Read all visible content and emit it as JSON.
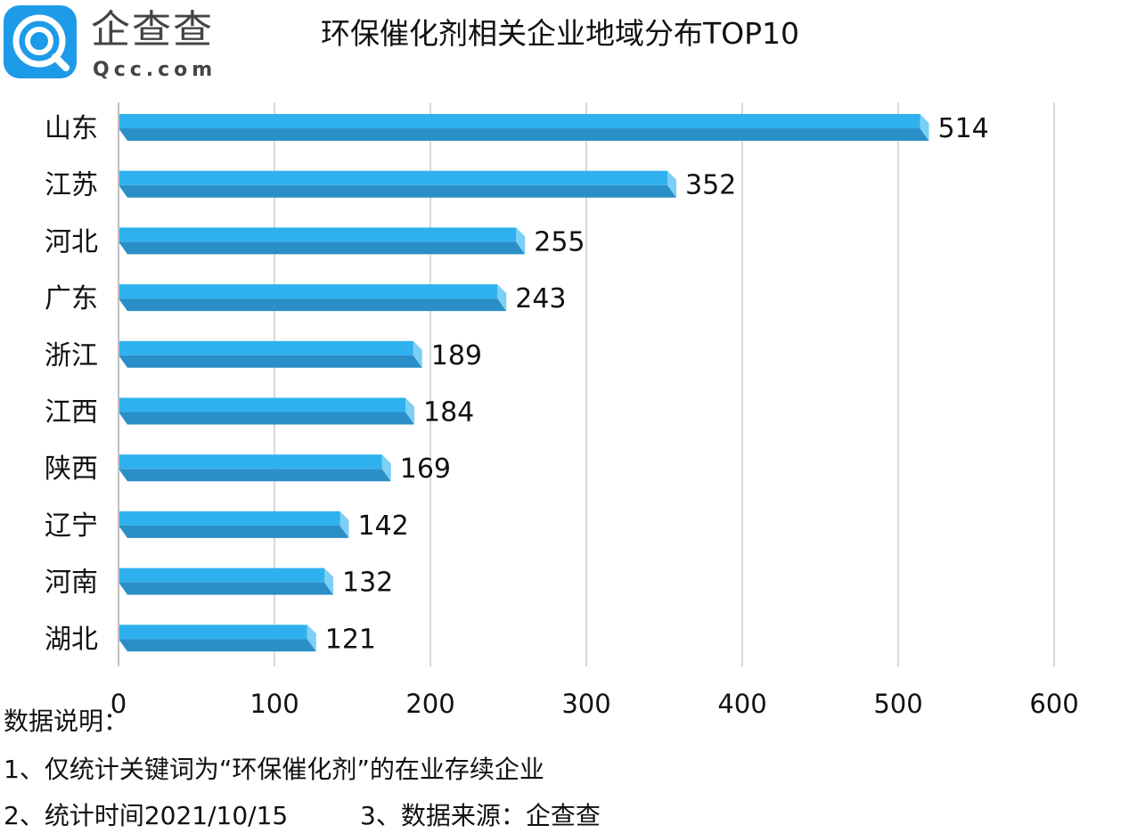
{
  "logo": {
    "name_cn": "企查查",
    "name_en": "Qcc.com",
    "icon": "qcc-magnifier-icon"
  },
  "title": "环保催化剂相关企业地域分布TOP10",
  "notes": {
    "heading": "数据说明：",
    "item1": "1、仅统计关键词为“环保催化剂”的在业存续企业",
    "item2": "2、统计时间2021/10/15",
    "item3": "3、数据来源：企查查"
  },
  "colors": {
    "bar_front": "#2eb1ee",
    "bar_bottom": "#2a8fc6",
    "bar_end": "#7ccff5",
    "grid": "#d9d9d9",
    "logo": "#1e9be8"
  },
  "chart_data": {
    "type": "bar",
    "orientation": "horizontal",
    "categories": [
      "山东",
      "江苏",
      "河北",
      "广东",
      "浙江",
      "江西",
      "陕西",
      "辽宁",
      "河南",
      "湖北"
    ],
    "values": [
      514,
      352,
      255,
      243,
      189,
      184,
      169,
      142,
      132,
      121
    ],
    "xlim": [
      0,
      600
    ],
    "xticks": [
      0,
      100,
      200,
      300,
      400,
      500,
      600
    ],
    "grid": "vertical",
    "legend": "none",
    "data_labels": true
  }
}
